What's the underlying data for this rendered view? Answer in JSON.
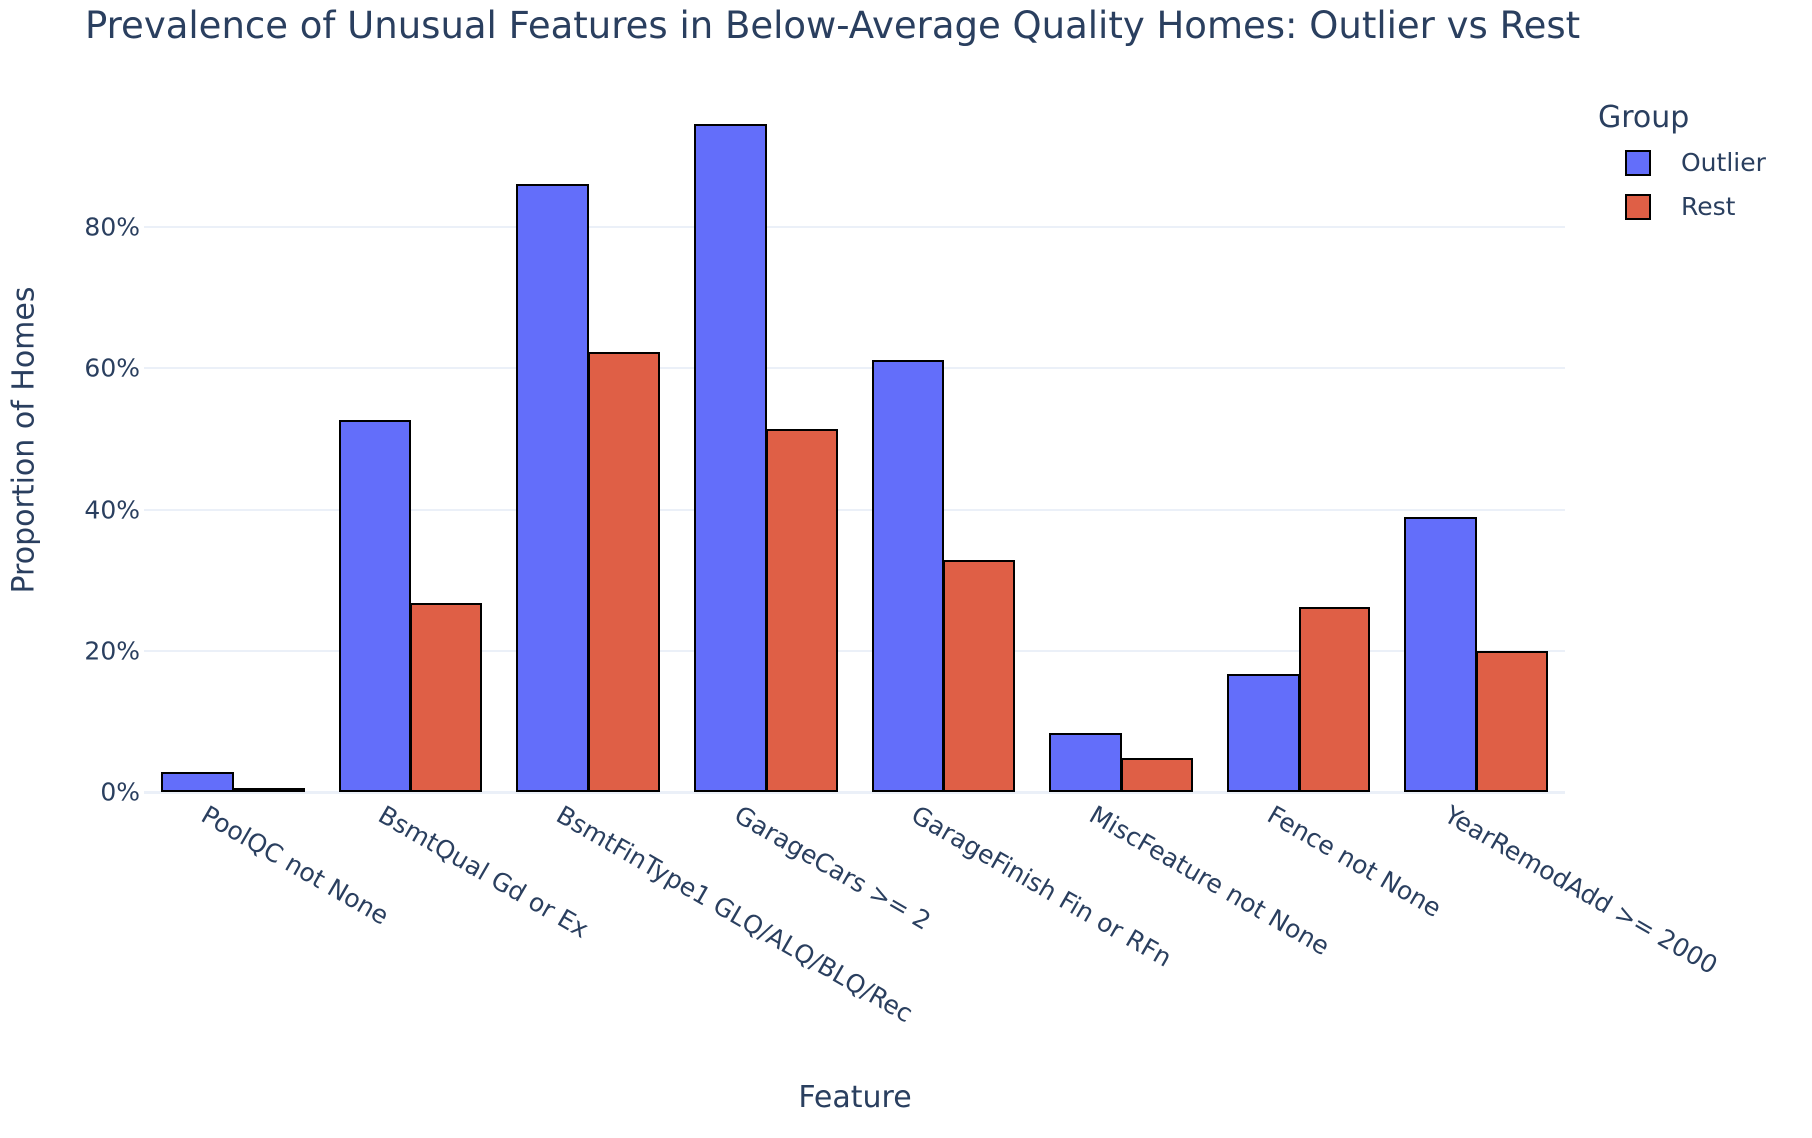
{
  "title": "Prevalence of Unusual Features in Below-Average Quality Homes: Outlier vs Rest",
  "axes": {
    "x_title": "Feature",
    "y_title": "Proportion of Homes",
    "y_ticks": [
      "0%",
      "20%",
      "40%",
      "60%",
      "80%"
    ]
  },
  "legend": {
    "title": "Group",
    "items": [
      {
        "label": "Outlier",
        "color": "#636efa"
      },
      {
        "label": "Rest",
        "color": "#df5f46"
      }
    ]
  },
  "chart_data": {
    "type": "bar",
    "title": "Prevalence of Unusual Features in Below-Average Quality Homes: Outlier vs Rest",
    "xlabel": "Feature",
    "ylabel": "Proportion of Homes",
    "categories": [
      "PoolQC not None",
      "BsmtQual Gd or Ex",
      "BsmtFinType1 GLQ/ALQ/BLQ/Rec",
      "GarageCars >= 2",
      "GarageFinish Fin or RFn",
      "MiscFeature not None",
      "Fence not None",
      "YearRemodAdd >= 2000"
    ],
    "series": [
      {
        "name": "Outlier",
        "color": "#636efa",
        "values": [
          2.8,
          52.7,
          86.1,
          94.6,
          61.2,
          8.4,
          16.7,
          38.9
        ]
      },
      {
        "name": "Rest",
        "color": "#df5f46",
        "values": [
          0.2,
          26.8,
          62.3,
          51.4,
          32.9,
          4.8,
          26.2,
          20.0
        ]
      }
    ],
    "y_unit": "%",
    "ylim": [
      0,
      98
    ],
    "y_tick_values": [
      0,
      20,
      40,
      60,
      80
    ],
    "grid": true,
    "barmode": "group",
    "legend_position": "top-right",
    "x_tick_angle": 30
  }
}
